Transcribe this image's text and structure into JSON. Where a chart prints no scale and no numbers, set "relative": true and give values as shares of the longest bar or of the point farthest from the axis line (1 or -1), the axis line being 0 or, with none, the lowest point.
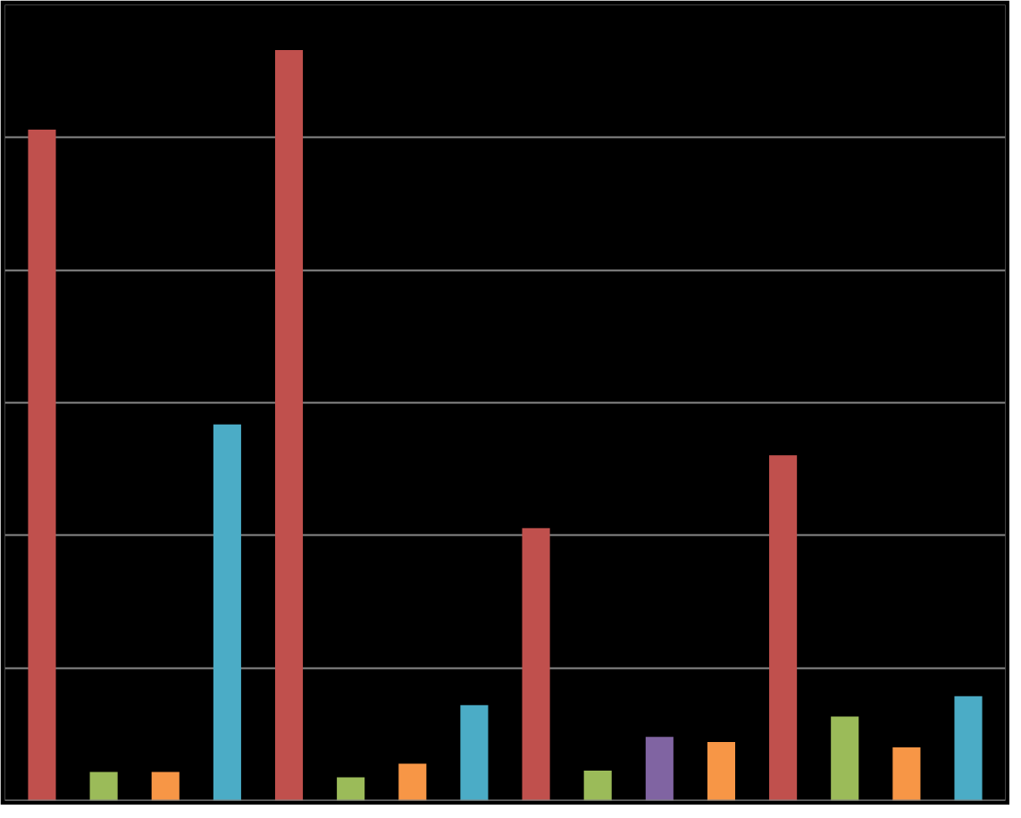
{
  "chart_data": {
    "type": "bar",
    "relative": true,
    "grid": "y",
    "categories": [
      null,
      null,
      null,
      null,
      null,
      null,
      null,
      null,
      null,
      null,
      null,
      null,
      null,
      null,
      null,
      null
    ],
    "values": [
      0.894,
      0.038,
      0.038,
      0.501,
      1,
      0.031,
      0.049,
      0.127,
      0.363,
      0.04,
      0.085,
      0.078,
      0.46,
      0.112,
      0.071,
      0.139
    ],
    "colors": [
      "#c0504d",
      "#9bbb59",
      "#f79646",
      "#4bacc6",
      "#c0504d",
      "#9bbb59",
      "#f79646",
      "#4bacc6",
      "#c0504d",
      "#9bbb59",
      "#8064a2",
      "#f79646",
      "#c0504d",
      "#9bbb59",
      "#f79646",
      "#4bacc6"
    ]
  }
}
